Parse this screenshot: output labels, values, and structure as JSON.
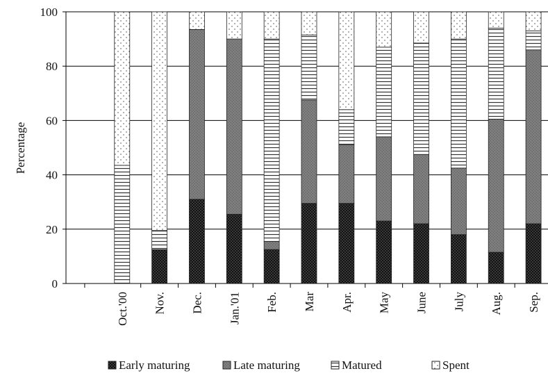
{
  "chart_data": {
    "type": "bar",
    "stacked": true,
    "categories": [
      "Oct.'00",
      "Nov.",
      "Dec.",
      "Jan.'01",
      "Feb.",
      "Mar",
      "Apr.",
      "May",
      "June",
      "July",
      "Aug.",
      "Sep."
    ],
    "series": [
      {
        "name": "Early maturing",
        "values": [
          0,
          12.5,
          31,
          25.5,
          12.5,
          29.5,
          29.5,
          23,
          22,
          18,
          11.5,
          22
        ]
      },
      {
        "name": "Late maturing",
        "values": [
          0,
          0,
          62.5,
          64.5,
          3,
          38,
          21.5,
          31,
          25.5,
          24.5,
          49,
          64
        ]
      },
      {
        "name": "Matured",
        "values": [
          43.5,
          7,
          0,
          0,
          74.5,
          24,
          13,
          33,
          41,
          47.5,
          33.5,
          7
        ]
      },
      {
        "name": "Spent",
        "values": [
          56.5,
          80.5,
          6.5,
          10,
          10,
          8.5,
          36,
          13,
          11.5,
          10,
          6,
          7
        ]
      }
    ],
    "ylabel": "Percentage",
    "xlabel": "",
    "ylim": [
      0,
      100
    ],
    "yticks": [
      0,
      20,
      40,
      60,
      80,
      100
    ],
    "grid": true,
    "legend_position": "bottom",
    "colors": {
      "Early maturing": "#2b2b2b",
      "Late maturing": "#7a7a7a",
      "Matured": "#ffffff",
      "Spent": "#ffffff"
    }
  }
}
